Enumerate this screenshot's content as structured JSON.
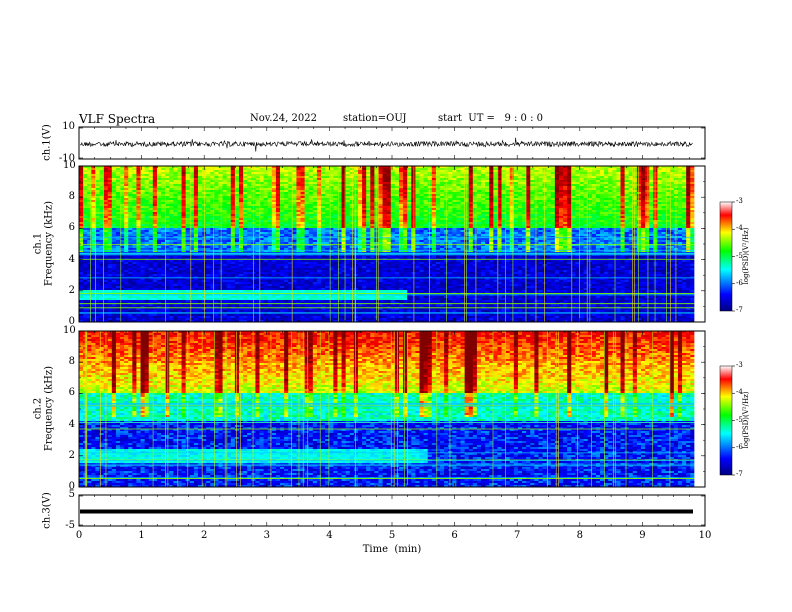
{
  "header": {
    "title": "VLF Spectra",
    "date": "Nov.24, 2022",
    "station": "station=OUJ",
    "start": "start  UT =   9 : 0 : 0"
  },
  "chart_data": [
    {
      "type": "line",
      "name": "ch1-waveform",
      "ylabel": "ch.1(V)",
      "ylim": [
        -10,
        10
      ],
      "yticks": [
        "10",
        "-10"
      ],
      "xlim": [
        0,
        10
      ],
      "note": "noisy trace centred near zero"
    },
    {
      "type": "heatmap",
      "name": "ch1-spectrogram",
      "ylabel": "ch.1\nFrequency (kHz)",
      "ylim": [
        0,
        10
      ],
      "yticks": [
        "0",
        "2",
        "4",
        "6",
        "8",
        "10"
      ],
      "xlim": [
        0,
        10
      ],
      "colorbar": {
        "label": "log(PSD)(V²/Hz)",
        "range": [
          -7,
          -3
        ],
        "ticks": [
          "-3",
          "-4",
          "-5",
          "-6",
          "-7"
        ]
      }
    },
    {
      "type": "heatmap",
      "name": "ch2-spectrogram",
      "ylabel": "ch.2\nFrequency (kHz)",
      "ylim": [
        0,
        10
      ],
      "yticks": [
        "0",
        "2",
        "4",
        "6",
        "8",
        "10"
      ],
      "xlim": [
        0,
        10
      ],
      "colorbar": {
        "label": "log(PSD)(V²/Hz)",
        "range": [
          -7,
          -3
        ],
        "ticks": [
          "-3",
          "-4",
          "-5",
          "-6",
          "-7"
        ]
      }
    },
    {
      "type": "line",
      "name": "ch3-waveform",
      "ylabel": "ch.3(V)",
      "ylim": [
        -5,
        5
      ],
      "yticks": [
        "5",
        "-5"
      ],
      "xlim": [
        0,
        10
      ],
      "note": "flat line near -1 V"
    }
  ],
  "xaxis": {
    "label": "Time  (min)",
    "ticks": [
      "0",
      "1",
      "2",
      "3",
      "4",
      "5",
      "6",
      "7",
      "8",
      "9",
      "10"
    ]
  },
  "colors": {
    "colormap": [
      "#000080",
      "#0000ff",
      "#00ffff",
      "#00ff00",
      "#ffff00",
      "#ff0000",
      "#800000"
    ]
  }
}
